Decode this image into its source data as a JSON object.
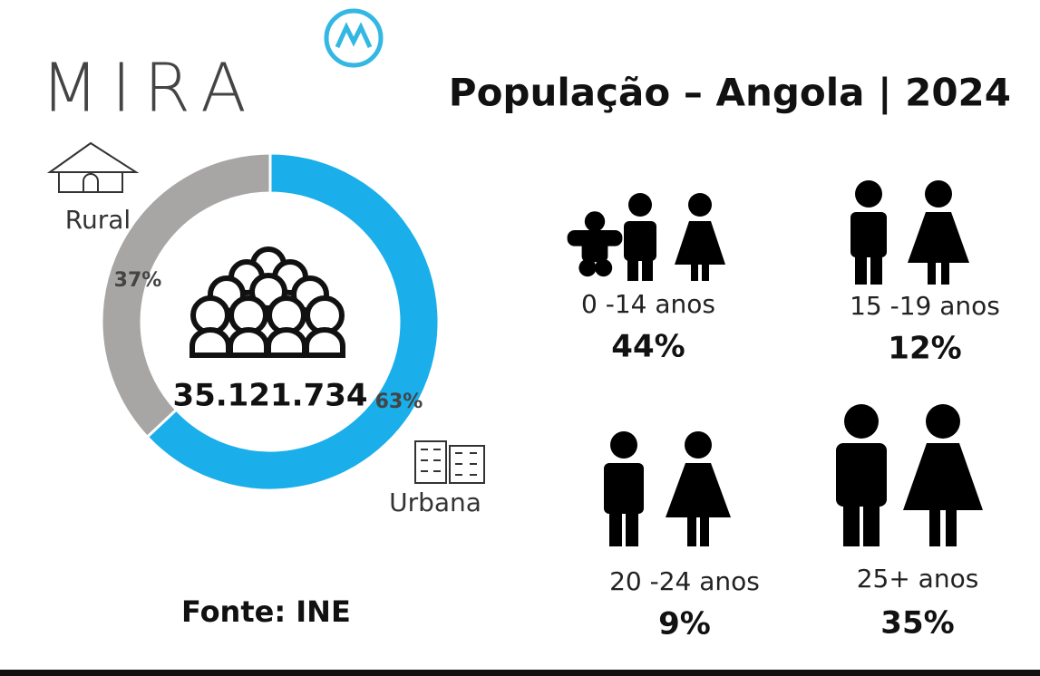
{
  "header": {
    "logo": "MIRA",
    "title": "População – Angola | 2024"
  },
  "chart_data": {
    "type": "pie",
    "categories": [
      "Rural",
      "Urbana"
    ],
    "values": [
      37,
      63
    ],
    "value_labels": [
      "37%",
      "63%"
    ],
    "colors": [
      "#a8a5a5",
      "#1aaeea"
    ],
    "center_label": "35.121.734"
  },
  "age_groups": [
    {
      "label": "0 -14 anos",
      "share": "44%"
    },
    {
      "label": "15 -19 anos",
      "share": "12%"
    },
    {
      "label": "20 -24 anos",
      "share": "9%"
    },
    {
      "label": "25+ anos",
      "share": "35%"
    }
  ],
  "source": "Fonte: INE"
}
